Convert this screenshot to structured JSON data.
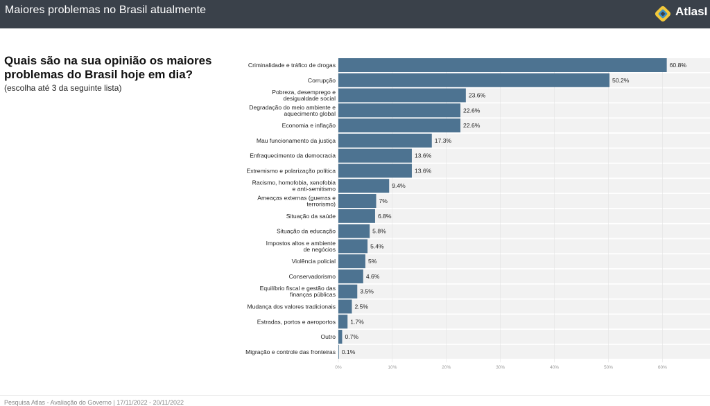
{
  "header": {
    "title": "Maiores problemas no Brasil atualmente",
    "brand": "AtlasI",
    "colors": {
      "bar_bg": "#3a414a",
      "logo_outer": "#f2c83a",
      "logo_inner": "#3b8fc6"
    }
  },
  "question": {
    "title": "Quais são na sua opinião os maiores problemas do Brasil hoje em dia?",
    "note": "(escolha até 3 da seguinte lista)"
  },
  "footer": {
    "source": "Pesquisa Atlas - Avaliação do Governo | 17/11/2022 - 20/11/2022"
  },
  "chart_data": {
    "type": "bar",
    "orientation": "horizontal",
    "title": "",
    "xlabel": "",
    "ylabel": "",
    "xlim": [
      0,
      69
    ],
    "grid": true,
    "colors": {
      "bar": "#4d7391",
      "row_bg": "#f2f2f2",
      "tick": "#999999"
    },
    "ticks": [
      "0%",
      "10%",
      "20%",
      "30%",
      "40%",
      "50%",
      "60%"
    ],
    "tick_values": [
      0,
      10,
      20,
      30,
      40,
      50,
      60
    ],
    "categories": [
      "Criminalidade e tráfico de drogas",
      "Corrupção",
      "Pobreza, desemprego e desigualdade social",
      "Degradação do meio ambiente e aquecimento global",
      "Economia e inflação",
      "Mau funcionamento da justiça",
      "Enfraquecimento da democracia",
      "Extremismo e polarização política",
      "Racismo, homofobia, xenofobia e anti-semitismo",
      "Ameaças externas (guerras e terrorismo)",
      "Situação da saúde",
      "Situação da educação",
      "Impostos altos e ambiente de negócios",
      "Violência policial",
      "Conservadorismo",
      "Equilíbrio fiscal e gestão das finanças públicas",
      "Mudança dos valores tradicionais",
      "Estradas, portos e aeroportos",
      "Outro",
      "Migração e controle das fronteiras"
    ],
    "category_lines": [
      [
        "Criminalidade e tráfico de drogas"
      ],
      [
        "Corrupção"
      ],
      [
        "Pobreza, desemprego e",
        "desigualdade social"
      ],
      [
        "Degradação do meio ambiente e",
        "aquecimento global"
      ],
      [
        "Economia e inflação"
      ],
      [
        "Mau funcionamento da justiça"
      ],
      [
        "Enfraquecimento da democracia"
      ],
      [
        "Extremismo e polarização política"
      ],
      [
        "Racismo, homofobia, xenofobia",
        "e anti-semitismo"
      ],
      [
        "Ameaças externas (guerras e",
        "terrorismo)"
      ],
      [
        "Situação da saúde"
      ],
      [
        "Situação da educação"
      ],
      [
        "Impostos altos e ambiente",
        "de negócios"
      ],
      [
        "Violência policial"
      ],
      [
        "Conservadorismo"
      ],
      [
        "Equilíbrio fiscal e gestão das",
        "finanças públicas"
      ],
      [
        "Mudança dos valores tradicionais"
      ],
      [
        "Estradas, portos e aeroportos"
      ],
      [
        "Outro"
      ],
      [
        "Migração e controle das fronteiras"
      ]
    ],
    "values": [
      60.8,
      50.2,
      23.6,
      22.6,
      22.6,
      17.3,
      13.6,
      13.6,
      9.4,
      7,
      6.8,
      5.8,
      5.4,
      5,
      4.6,
      3.5,
      2.5,
      1.7,
      0.7,
      0.1
    ],
    "value_labels": [
      "60.8%",
      "50.2%",
      "23.6%",
      "22.6%",
      "22.6%",
      "17.3%",
      "13.6%",
      "13.6%",
      "9.4%",
      "7%",
      "6.8%",
      "5.8%",
      "5.4%",
      "5%",
      "4.6%",
      "3.5%",
      "2.5%",
      "1.7%",
      "0.7%",
      "0.1%"
    ]
  }
}
